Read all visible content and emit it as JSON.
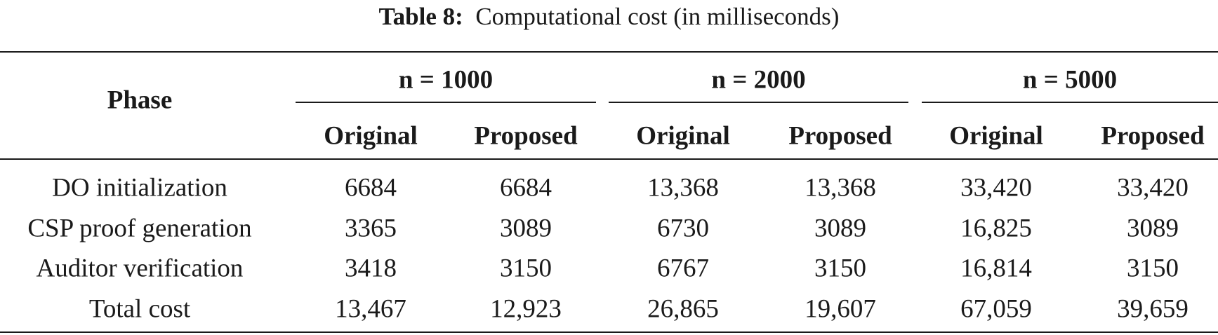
{
  "table": {
    "caption_label": "Table 8:",
    "caption": "Computational cost (in milliseconds)",
    "phase_header": "Phase",
    "groups": [
      "n = 1000",
      "n = 2000",
      "n = 5000"
    ],
    "subheaders": [
      "Original",
      "Proposed",
      "Original",
      "Proposed",
      "Original",
      "Proposed"
    ],
    "rows": [
      [
        "DO initialization",
        "6684",
        "6684",
        "13,368",
        "13,368",
        "33,420",
        "33,420"
      ],
      [
        "CSP proof generation",
        "3365",
        "3089",
        "6730",
        "3089",
        "16,825",
        "3089"
      ],
      [
        "Auditor verification",
        "3418",
        "3150",
        "6767",
        "3150",
        "16,814",
        "3150"
      ],
      [
        "Total cost",
        "13,467",
        "12,923",
        "26,865",
        "19,607",
        "67,059",
        "39,659"
      ]
    ]
  }
}
